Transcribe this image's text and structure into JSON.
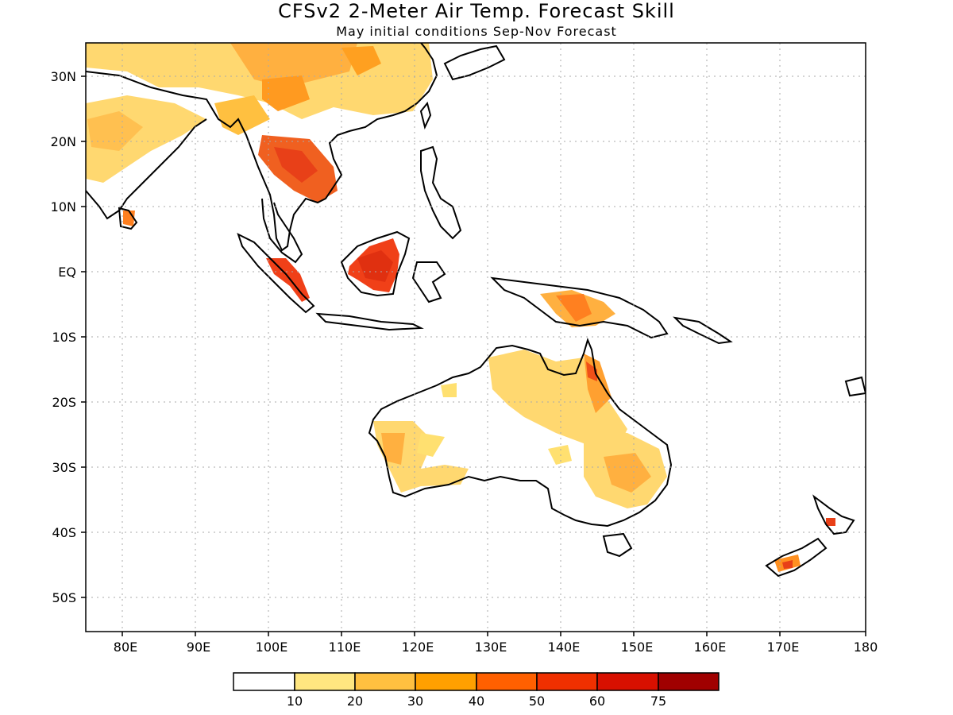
{
  "title": "CFSv2 2-Meter Air Temp. Forecast Skill",
  "subtitle": "May initial conditions  Sep-Nov Forecast",
  "lon_ticks": [
    "80E",
    "90E",
    "100E",
    "110E",
    "120E",
    "130E",
    "140E",
    "150E",
    "160E",
    "170E",
    "180"
  ],
  "lat_ticks": [
    "30N",
    "20N",
    "10N",
    "EQ",
    "10S",
    "20S",
    "30S",
    "40S",
    "50S"
  ],
  "colorbar": {
    "labels": [
      "10",
      "20",
      "30",
      "40",
      "50",
      "60",
      "75"
    ],
    "colors": [
      "#ffffff",
      "#ffe680",
      "#ffc040",
      "#ffa000",
      "#ff6000",
      "#f03000",
      "#d81000",
      "#a00000"
    ]
  }
}
